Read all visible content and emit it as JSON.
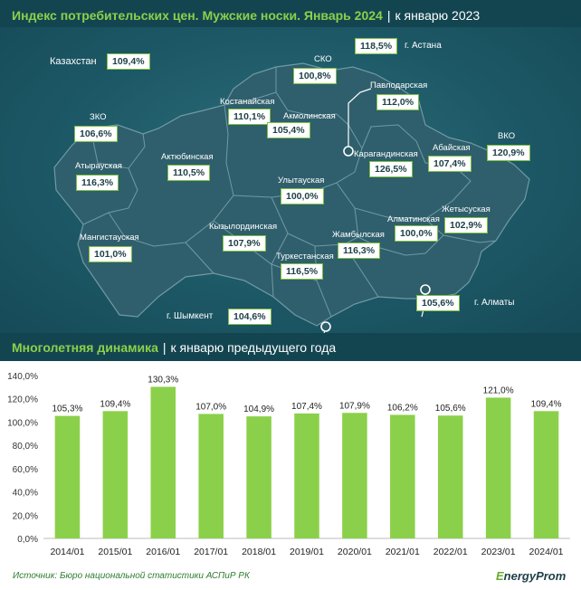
{
  "header_map": {
    "title": "Индекс потребительских цен. Мужские носки. Январь 2024",
    "subtitle": "к январю 2023"
  },
  "kazakhstan": {
    "label": "Казахстан",
    "value": "109,4%"
  },
  "regions": {
    "zko": {
      "name": "ЗКО",
      "value": "106,6%"
    },
    "atyrau": {
      "name": "Атырауская",
      "value": "116,3%"
    },
    "mangistau": {
      "name": "Мангистауская",
      "value": "101,0%"
    },
    "aktobe": {
      "name": "Актюбинская",
      "value": "110,5%"
    },
    "kostanay": {
      "name": "Костанайская",
      "value": "110,1%"
    },
    "sko": {
      "name": "СКО",
      "value": "100,8%"
    },
    "akmola": {
      "name": "Акмолинская",
      "value": "105,4%"
    },
    "pavlodar": {
      "name": "Павлодарская",
      "value": "112,0%"
    },
    "vko": {
      "name": "ВКО",
      "value": "120,9%"
    },
    "abay": {
      "name": "Абайская",
      "value": "107,4%"
    },
    "karaganda": {
      "name": "Карагандинская",
      "value": "126,5%"
    },
    "ulytau": {
      "name": "Улытауская",
      "value": "100,0%"
    },
    "kyzylorda": {
      "name": "Кызылординская",
      "value": "107,9%"
    },
    "zhetysu": {
      "name": "Жетысуская",
      "value": "102,9%"
    },
    "almaty_reg": {
      "name": "Алматинская",
      "value": "100,0%"
    },
    "zhambyl": {
      "name": "Жамбылская",
      "value": "116,3%"
    },
    "turkestan": {
      "name": "Туркестанская",
      "value": "116,5%"
    }
  },
  "cities": {
    "astana": {
      "name": "г. Астана",
      "value": "118,5%"
    },
    "almaty": {
      "name": "г. Алматы",
      "value": "105,6%"
    },
    "shymkent": {
      "name": "г. Шымкент",
      "value": "104,6%"
    }
  },
  "header_chart": {
    "title": "Многолетняя динамика",
    "subtitle": "к январю предыдущего года"
  },
  "chart_data": {
    "type": "bar",
    "title": "Многолетняя динамика",
    "categories": [
      "2014/01",
      "2015/01",
      "2016/01",
      "2017/01",
      "2018/01",
      "2019/01",
      "2020/01",
      "2021/01",
      "2022/01",
      "2023/01",
      "2024/01"
    ],
    "values": [
      105.3,
      109.4,
      130.3,
      107.0,
      104.9,
      107.4,
      107.9,
      106.2,
      105.6,
      121.0,
      109.4
    ],
    "value_labels": [
      "105,3%",
      "109,4%",
      "130,3%",
      "107,0%",
      "104,9%",
      "107,4%",
      "107,9%",
      "106,2%",
      "105,6%",
      "121,0%",
      "109,4%"
    ],
    "y_ticks": [
      "0,0%",
      "20,0%",
      "40,0%",
      "60,0%",
      "80,0%",
      "100,0%",
      "120,0%",
      "140,0%"
    ],
    "ylim": [
      0,
      140
    ],
    "xlabel": "",
    "ylabel": "",
    "grid": false,
    "bar_color": "#8bd04a"
  },
  "source": "Источник: Бюро национальной статистики АСПиР РК",
  "logo": {
    "prefix": "E",
    "text": "nergyProm"
  }
}
